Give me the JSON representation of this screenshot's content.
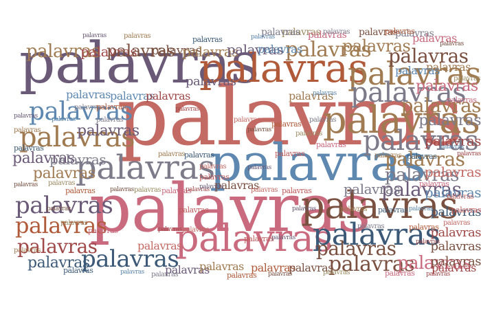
{
  "word": "palavras",
  "palette": [
    "#6a5a78",
    "#b05a3a",
    "#c46a64",
    "#5e88b0",
    "#c96a7e",
    "#a07a50",
    "#7a5040",
    "#bf5a5a",
    "#7d7a8a",
    "#a04848",
    "#3c5a78",
    "#9a8a60"
  ]
}
